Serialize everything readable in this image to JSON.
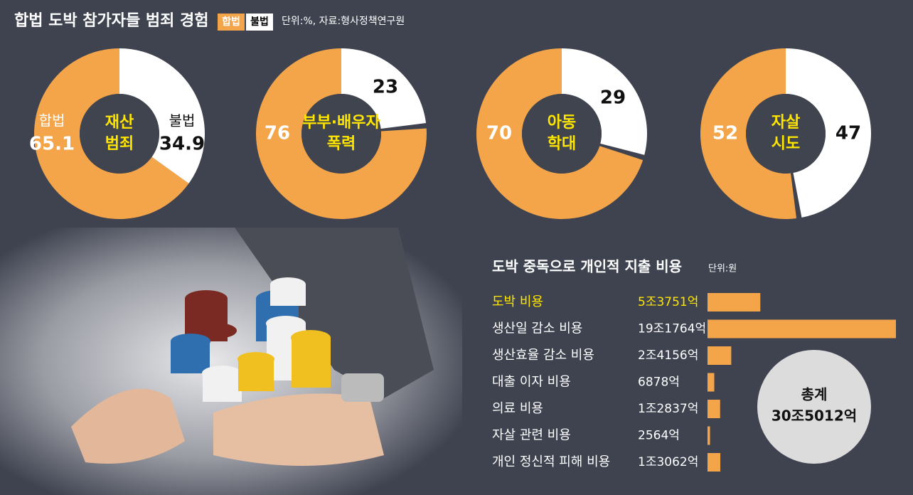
{
  "header": {
    "title": "합법 도박 참가자들 범죄 경험",
    "legend": [
      "합법",
      "불법"
    ],
    "legend_colors": [
      "#f4a54a",
      "#ffffff"
    ],
    "note": "단위:%, 자료:형사정책연구원"
  },
  "chart_data": [
    {
      "type": "donut",
      "label": [
        "재산",
        "범죄"
      ],
      "values": [
        65.1,
        34.9
      ]
    },
    {
      "type": "donut",
      "label": [
        "부부·배우자",
        "폭력"
      ],
      "values": [
        76,
        23
      ]
    },
    {
      "type": "donut",
      "label": [
        "아동",
        "학대"
      ],
      "values": [
        70,
        29
      ]
    },
    {
      "type": "donut",
      "label": [
        "자살",
        "시도"
      ],
      "values": [
        52,
        47
      ]
    },
    {
      "type": "bar",
      "title": "도박 중독으로 개인적 지출 비용",
      "note": "단위:원",
      "color": "#f4a54a",
      "highlight": 0,
      "highlight_color": "#ffe600",
      "categories": [
        "도박 비용",
        "생산일 감소 비용",
        "생산효율 감소 비용",
        "대출 이자 비용",
        "의료 비용",
        "자살 관련 비용",
        "개인 정신적 피해 비용"
      ],
      "values": [
        53751,
        191764,
        24156,
        6878,
        12837,
        2564,
        13062
      ],
      "value_labels": [
        "5조3751억",
        "19조1764억",
        "2조4156억",
        "6878억",
        "1조2837억",
        "2564억",
        "1조3062억"
      ],
      "total_title": "총계",
      "total": {
        "value": 305012,
        "label": "30조5012억"
      }
    }
  ]
}
